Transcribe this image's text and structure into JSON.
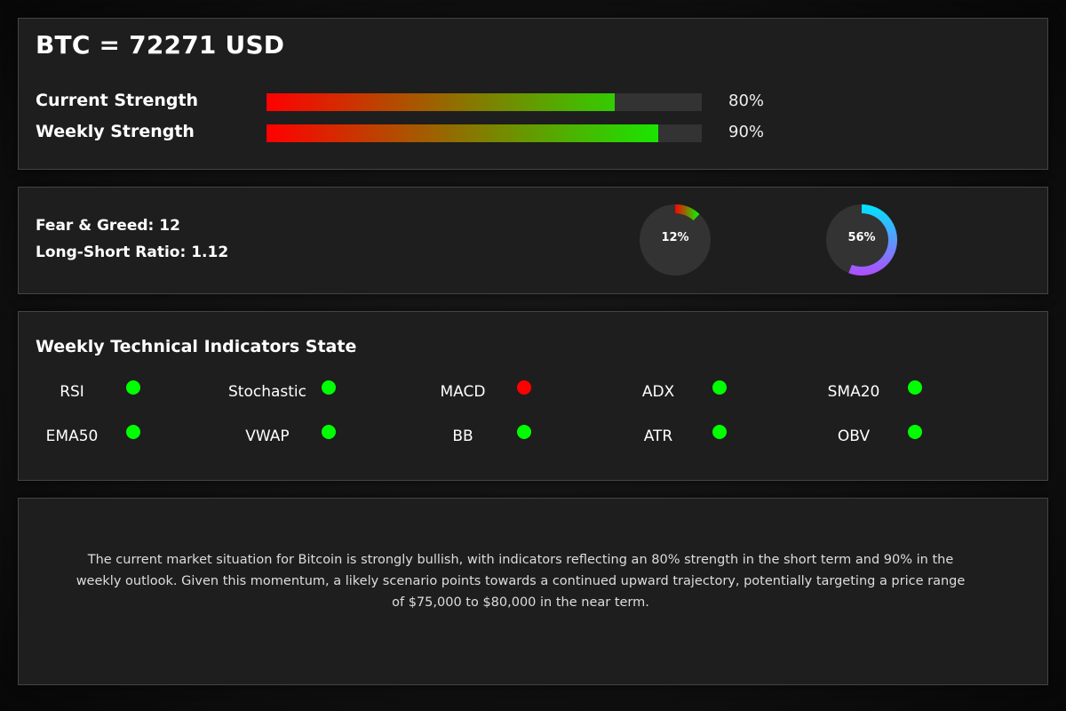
{
  "colors": {
    "panel_bg": "#1e1e1e",
    "panel_border": "#444444",
    "bar_track": "#333333",
    "bar_start": "#ff0000",
    "bar_end": "#00ff00",
    "status_on": "#00ff00",
    "status_off": "#ff0000"
  },
  "header": {
    "title": "BTC = 72271 USD"
  },
  "strength": {
    "current": {
      "label": "Current Strength",
      "percent": 80,
      "value_text": "80%"
    },
    "weekly": {
      "label": "Weekly Strength",
      "percent": 90,
      "value_text": "90%"
    }
  },
  "sentiment": {
    "fear_greed_text": "Fear & Greed: 12",
    "long_short_text": "Long-Short Ratio: 1.12",
    "fear_greed_gauge": {
      "percent": 12,
      "label": "12%",
      "color_start": "#ff0000",
      "color_end": "#00ff00"
    },
    "long_short_gauge": {
      "percent": 56,
      "label": "56%",
      "color_start": "#00e5ff",
      "color_end": "#b24cff"
    }
  },
  "indicators": {
    "title": "Weekly Technical Indicators State",
    "items": [
      {
        "name": "RSI",
        "status": "positive"
      },
      {
        "name": "Stochastic",
        "status": "positive"
      },
      {
        "name": "MACD",
        "status": "negative"
      },
      {
        "name": "ADX",
        "status": "positive"
      },
      {
        "name": "SMA20",
        "status": "positive"
      },
      {
        "name": "EMA50",
        "status": "positive"
      },
      {
        "name": "VWAP",
        "status": "positive"
      },
      {
        "name": "BB",
        "status": "positive"
      },
      {
        "name": "ATR",
        "status": "positive"
      },
      {
        "name": "OBV",
        "status": "positive"
      }
    ]
  },
  "summary": {
    "text": "The current market situation for Bitcoin is strongly bullish, with indicators reflecting an 80% strength in the short term and 90% in the weekly outlook. Given this momentum, a likely scenario points towards a continued upward trajectory, potentially targeting a price range of $75,000 to $80,000 in the near term."
  }
}
